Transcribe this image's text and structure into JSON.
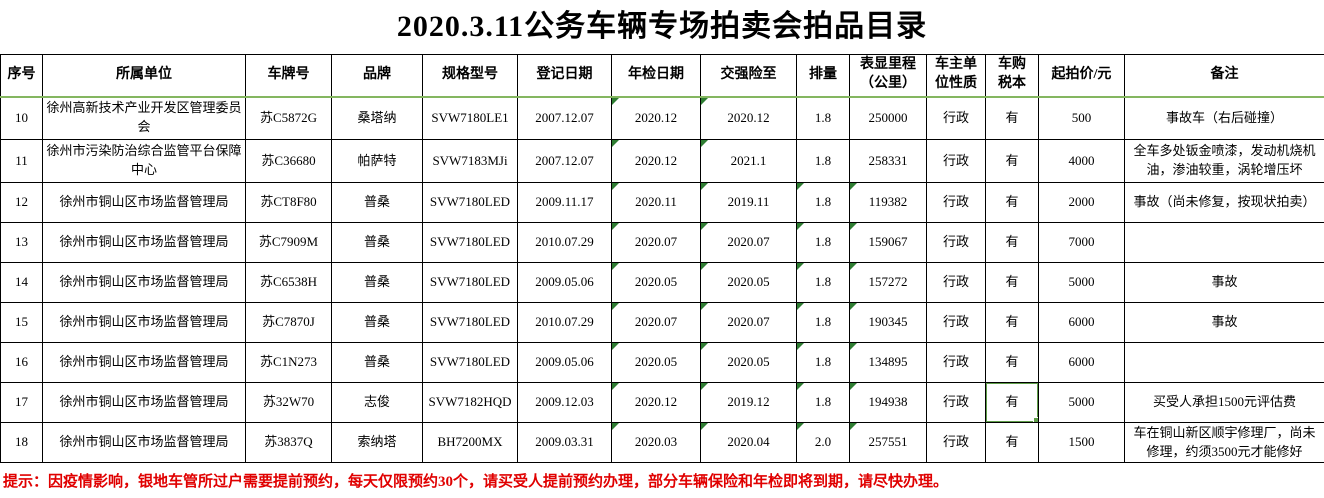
{
  "title": "2020.3.11公务车辆专场拍卖会拍品目录",
  "table": {
    "columns": [
      "序号",
      "所属单位",
      "车牌号",
      "品牌",
      "规格型号",
      "登记日期",
      "年检日期",
      "交强险至",
      "排量",
      "表显里程\n（公里）",
      "车主单\n位性质",
      "车购\n税本",
      "起拍价/元",
      "备注"
    ],
    "rows": [
      {
        "cells": [
          "10",
          "徐州高新技术产业开发区管理委员会",
          "苏C5872G",
          "桑塔纳",
          "SVW7180LE1",
          "2007.12.07",
          "2020.12",
          "2020.12",
          "1.8",
          "250000",
          "行政",
          "有",
          "500",
          "事故车（右后碰撞）"
        ],
        "triangles": [
          6,
          7
        ]
      },
      {
        "cells": [
          "11",
          "徐州市污染防治综合监管平台保障中心",
          "苏C36680",
          "帕萨特",
          "SVW7183MJi",
          "2007.12.07",
          "2020.12",
          "2021.1",
          "1.8",
          "258331",
          "行政",
          "有",
          "4000",
          "全车多处钣金喷漆，发动机烧机油，渗油较重，涡轮增压坏"
        ],
        "triangles": [
          6,
          7
        ]
      },
      {
        "cells": [
          "12",
          "徐州市铜山区市场监督管理局",
          "苏CT8F80",
          "普桑",
          "SVW7180LED",
          "2009.11.17",
          "2020.11",
          "2019.11",
          "1.8",
          "119382",
          "行政",
          "有",
          "2000",
          "事故（尚未修复，按现状拍卖）"
        ],
        "triangles": [
          6,
          7,
          8,
          9
        ]
      },
      {
        "cells": [
          "13",
          "徐州市铜山区市场监督管理局",
          "苏C7909M",
          "普桑",
          "SVW7180LED",
          "2010.07.29",
          "2020.07",
          "2020.07",
          "1.8",
          "159067",
          "行政",
          "有",
          "7000",
          ""
        ],
        "triangles": [
          6,
          7,
          8,
          9
        ]
      },
      {
        "cells": [
          "14",
          "徐州市铜山区市场监督管理局",
          "苏C6538H",
          "普桑",
          "SVW7180LED",
          "2009.05.06",
          "2020.05",
          "2020.05",
          "1.8",
          "157272",
          "行政",
          "有",
          "5000",
          "事故"
        ],
        "triangles": [
          6,
          7,
          8,
          9
        ]
      },
      {
        "cells": [
          "15",
          "徐州市铜山区市场监督管理局",
          "苏C7870J",
          "普桑",
          "SVW7180LED",
          "2010.07.29",
          "2020.07",
          "2020.07",
          "1.8",
          "190345",
          "行政",
          "有",
          "6000",
          "事故"
        ],
        "triangles": [
          6,
          7,
          8,
          9
        ]
      },
      {
        "cells": [
          "16",
          "徐州市铜山区市场监督管理局",
          "苏C1N273",
          "普桑",
          "SVW7180LED",
          "2009.05.06",
          "2020.05",
          "2020.05",
          "1.8",
          "134895",
          "行政",
          "有",
          "6000",
          ""
        ],
        "triangles": [
          6,
          7,
          8,
          9
        ]
      },
      {
        "cells": [
          "17",
          "徐州市铜山区市场监督管理局",
          "苏32W70",
          "志俊",
          "SVW7182HQD",
          "2009.12.03",
          "2020.12",
          "2019.12",
          "1.8",
          "194938",
          "行政",
          "有",
          "5000",
          "买受人承担1500元评估费"
        ],
        "triangles": [
          6,
          7,
          8,
          9
        ],
        "selected_cell": 11
      },
      {
        "cells": [
          "18",
          "徐州市铜山区市场监督管理局",
          "苏3837Q",
          "索纳塔",
          "BH7200MX",
          "2009.03.31",
          "2020.03",
          "2020.04",
          "2.0",
          "257551",
          "行政",
          "有",
          "1500",
          "车在铜山新区顺宇修理厂，尚未修理，约须3500元才能修好"
        ],
        "triangles": [
          6,
          7,
          8,
          9
        ]
      }
    ]
  },
  "note": "提示：因疫情影响，银地车管所过户需要提前预约，每天仅限预约30个，请买受人提前预约办理，部分车辆保险和年检即将到期，请尽快办理。",
  "colors": {
    "grid_line": "#000000",
    "header_divider_green": "#84b660",
    "error_triangle_green": "#2e7d32",
    "selection_green": "#5f9e49",
    "note_red": "#e00000"
  }
}
